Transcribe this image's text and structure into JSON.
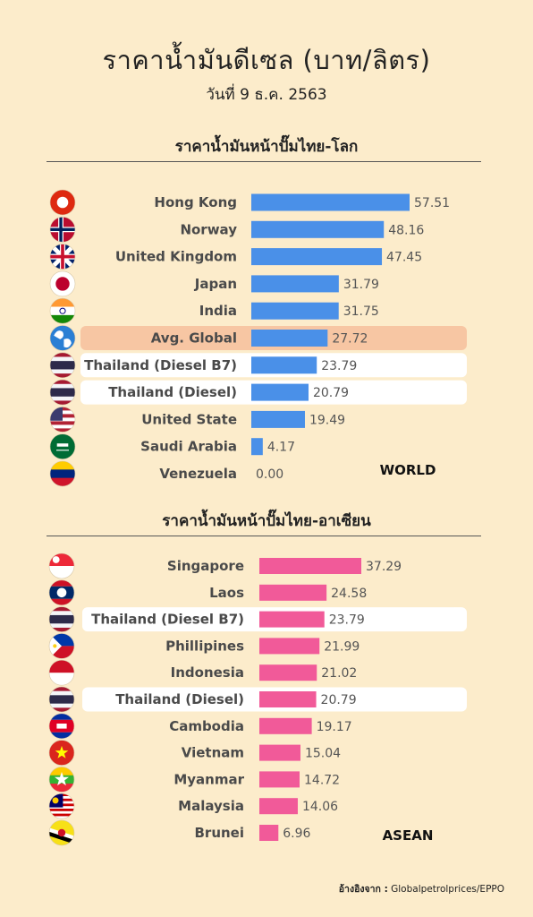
{
  "title": "ราคาน้ำมันดีเซล  (บาท/ลิตร)",
  "subtitle": "วันที่ 9 ธ.ค. 2563",
  "source": {
    "label": "อ้างอิงจาก :",
    "text": "Globalpetrolprices/EPPO"
  },
  "chart_data": [
    {
      "type": "bar",
      "orientation": "horizontal",
      "title": "ราคาน้ำมันหน้าปั๊มไทย-โลก",
      "corner_label": "WORLD",
      "bar_color": "#4a90e8",
      "categories": [
        "Hong Kong",
        "Norway",
        "United Kingdom",
        "Japan",
        "India",
        "Avg. Global",
        "Thailand (Diesel B7)",
        "Thailand (Diesel)",
        "United State",
        "Saudi Arabia",
        "Venezuela"
      ],
      "values": [
        57.51,
        48.16,
        47.45,
        31.79,
        31.75,
        27.72,
        23.79,
        20.79,
        19.49,
        4.17,
        0.0
      ],
      "value_labels": [
        "57.51",
        "48.16",
        "47.45",
        "31.79",
        "31.75",
        "27.72",
        "23.79",
        "20.79",
        "19.49",
        "4.17",
        "0.00"
      ],
      "highlight": {
        "Avg. Global": "#f7c6a3",
        "Thailand (Diesel B7)": "#ffffff",
        "Thailand (Diesel)": "#ffffff"
      },
      "icons": [
        "hong-kong-flag",
        "norway-flag",
        "united-kingdom-flag",
        "japan-flag",
        "india-flag",
        "globe-icon",
        "thailand-flag",
        "thailand-flag",
        "united-states-flag",
        "saudi-arabia-flag",
        "venezuela-flag"
      ]
    },
    {
      "type": "bar",
      "orientation": "horizontal",
      "title": "ราคาน้ำมันหน้าปั๊มไทย-อาเซียน",
      "corner_label": "ASEAN",
      "bar_color": "#f15a99",
      "categories": [
        "Singapore",
        "Laos",
        "Thailand (Diesel B7)",
        "Phillipines",
        "Indonesia",
        "Thailand (Diesel)",
        "Cambodia",
        "Vietnam",
        "Myanmar",
        "Malaysia",
        "Brunei"
      ],
      "values": [
        37.29,
        24.58,
        23.79,
        21.99,
        21.02,
        20.79,
        19.17,
        15.04,
        14.72,
        14.06,
        6.96
      ],
      "value_labels": [
        "37.29",
        "24.58",
        "23.79",
        "21.99",
        "21.02",
        "20.79",
        "19.17",
        "15.04",
        "14.72",
        "14.06",
        "6.96"
      ],
      "highlight": {
        "Thailand (Diesel B7)": "#ffffff",
        "Thailand (Diesel)": "#ffffff"
      },
      "icons": [
        "singapore-flag",
        "laos-flag",
        "thailand-flag",
        "philippines-flag",
        "indonesia-flag",
        "thailand-flag",
        "cambodia-flag",
        "vietnam-flag",
        "myanmar-flag",
        "malaysia-flag",
        "brunei-flag"
      ]
    }
  ]
}
